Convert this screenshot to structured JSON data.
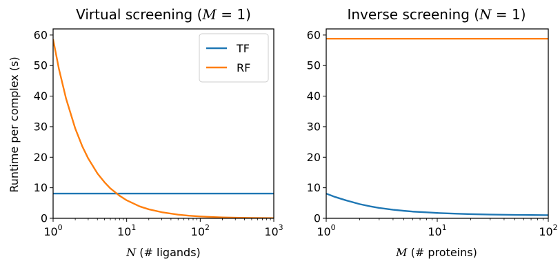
{
  "chart_data": [
    {
      "type": "line",
      "title": {
        "prefix": "Virtual screening (",
        "var": "M",
        "suffix": " = 1)"
      },
      "xlabel": {
        "var": "N",
        "rest": " (# ligands)"
      },
      "ylabel": "Runtime per complex (s)",
      "xscale": "log",
      "xlim": [
        1,
        1000
      ],
      "ylim": [
        0,
        62
      ],
      "xticks": [
        {
          "value": 1,
          "base": "10",
          "exp": "0"
        },
        {
          "value": 10,
          "base": "10",
          "exp": "1"
        },
        {
          "value": 100,
          "base": "10",
          "exp": "2"
        },
        {
          "value": 1000,
          "base": "10",
          "exp": "3"
        }
      ],
      "yticks": [
        {
          "value": 0,
          "label": "0"
        },
        {
          "value": 10,
          "label": "10"
        },
        {
          "value": 20,
          "label": "20"
        },
        {
          "value": 30,
          "label": "30"
        },
        {
          "value": 40,
          "label": "40"
        },
        {
          "value": 50,
          "label": "50"
        },
        {
          "value": 60,
          "label": "60"
        }
      ],
      "grid": false,
      "legend": "top-right",
      "series": [
        {
          "name": "TF",
          "color": "#1f77b4",
          "x": [
            1,
            1000
          ],
          "y": [
            8.1,
            8.1
          ]
        },
        {
          "name": "RF",
          "color": "#ff7f0e",
          "x": [
            1,
            1.2,
            1.5,
            2,
            2.5,
            3,
            4,
            5,
            6,
            8,
            10,
            15,
            20,
            30,
            50,
            70,
            100,
            150,
            200,
            300,
            500,
            700,
            1000
          ],
          "y": [
            58.6,
            48.9,
            39.2,
            29.4,
            23.5,
            19.6,
            14.7,
            11.8,
            9.8,
            7.4,
            5.9,
            3.9,
            2.95,
            2.0,
            1.2,
            0.85,
            0.6,
            0.4,
            0.3,
            0.2,
            0.12,
            0.09,
            0.06
          ]
        }
      ]
    },
    {
      "type": "line",
      "title": {
        "prefix": "Inverse screening (",
        "var": "N",
        "suffix": " = 1)"
      },
      "xlabel": {
        "var": "M",
        "rest": " (# proteins)"
      },
      "ylabel": "",
      "xscale": "log",
      "xlim": [
        1,
        100
      ],
      "ylim": [
        0,
        62
      ],
      "xticks": [
        {
          "value": 1,
          "base": "10",
          "exp": "0"
        },
        {
          "value": 10,
          "base": "10",
          "exp": "1"
        },
        {
          "value": 100,
          "base": "10",
          "exp": "2"
        }
      ],
      "yticks": [
        {
          "value": 0,
          "label": "0"
        },
        {
          "value": 10,
          "label": "10"
        },
        {
          "value": 20,
          "label": "20"
        },
        {
          "value": 30,
          "label": "30"
        },
        {
          "value": 40,
          "label": "40"
        },
        {
          "value": 50,
          "label": "50"
        },
        {
          "value": 60,
          "label": "60"
        }
      ],
      "grid": false,
      "legend": "none",
      "series": [
        {
          "color": "#1f77b4",
          "x": [
            1,
            1.2,
            1.5,
            2,
            2.5,
            3,
            4,
            5,
            6,
            8,
            10,
            15,
            20,
            30,
            50,
            70,
            100
          ],
          "y": [
            8.1,
            7.0,
            5.9,
            4.65,
            3.9,
            3.4,
            2.8,
            2.45,
            2.2,
            1.95,
            1.75,
            1.5,
            1.37,
            1.23,
            1.12,
            1.07,
            1.04
          ]
        },
        {
          "color": "#ff7f0e",
          "x": [
            1,
            100
          ],
          "y": [
            58.8,
            58.8
          ]
        }
      ]
    }
  ]
}
